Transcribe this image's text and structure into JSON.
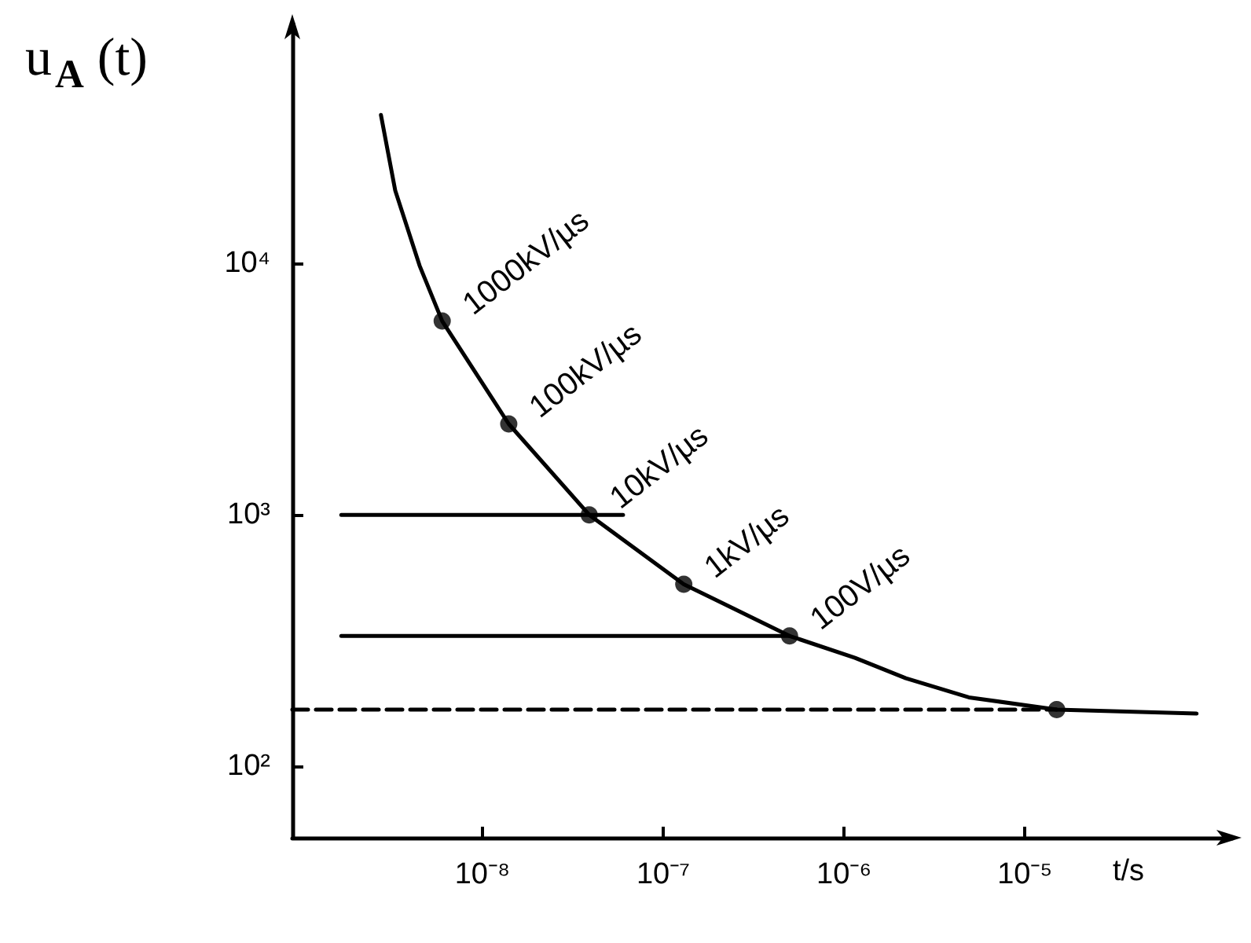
{
  "chart_data": {
    "type": "line",
    "xlabel": "t/s",
    "ylabel": "u$_{A}$ (t)",
    "log": "xy",
    "grid": false,
    "xlim": [
      8.9e-10,
      0.00014
    ],
    "ylim": [
      52,
      90000
    ],
    "xticks": [
      {
        "value": 1e-08,
        "label": "10⁻⁸"
      },
      {
        "value": 1e-07,
        "label": "10⁻⁷"
      },
      {
        "value": 1e-06,
        "label": "10⁻⁶"
      },
      {
        "value": 1e-05,
        "label": "10⁻⁵"
      }
    ],
    "yticks": [
      {
        "value": 100,
        "label": "10²"
      },
      {
        "value": 1000,
        "label": "10³"
      },
      {
        "value": 10000,
        "label": "10⁴"
      }
    ],
    "series": [
      {
        "color": "#000000",
        "marker": "none",
        "line_style": "solid",
        "x": [
          2.75e-09,
          3.3e-09,
          4.5e-09,
          6e-09,
          1.4e-08,
          3.9e-08,
          1.3e-07,
          5e-07,
          1.15e-06,
          2.2e-06,
          4.9e-06,
          1.5e-05,
          8.9e-05
        ],
        "values": [
          39000,
          19500,
          9800,
          5900,
          2300,
          1000,
          530,
          330,
          270,
          224,
          188,
          168,
          162
        ]
      },
      {
        "type": "scatter",
        "color": "#000000",
        "marker": "circle",
        "x": [
          6e-09,
          1.4e-08,
          3.9e-08,
          1.3e-07,
          5e-07,
          1.5e-05
        ],
        "values": [
          5900,
          2300,
          1000,
          530,
          330,
          168
        ]
      },
      {
        "color": "#000000",
        "marker": "none",
        "line_style": "solid",
        "x": [
          1.66e-09,
          6e-08
        ],
        "values": [
          1000,
          1000
        ]
      },
      {
        "color": "#000000",
        "marker": "none",
        "line_style": "solid",
        "x": [
          1.66e-09,
          5e-07
        ],
        "values": [
          330,
          330
        ]
      },
      {
        "color": "#000000",
        "marker": "none",
        "line_style": "dashed",
        "x": [
          8.9e-10,
          1.5e-05
        ],
        "values": [
          168,
          168
        ]
      }
    ],
    "annotations": [
      {
        "text": "1000kV/µs",
        "x": 6e-09,
        "y": 5900
      },
      {
        "text": "100kV/µs",
        "x": 1.4e-08,
        "y": 2300
      },
      {
        "text": "10kV/µs",
        "x": 3.9e-08,
        "y": 1000
      },
      {
        "text": "1kV/µs",
        "x": 1.3e-07,
        "y": 530
      },
      {
        "text": "100V/µs",
        "x": 5e-07,
        "y": 330
      }
    ]
  }
}
